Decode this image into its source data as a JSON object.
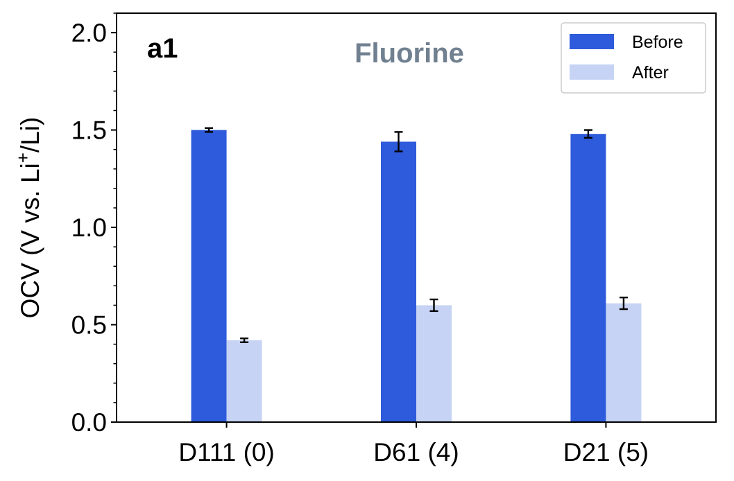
{
  "chart_data": {
    "type": "bar",
    "panel_label": "a1",
    "title": "Fluorine",
    "ylabel_main": "OCV (V vs. Li",
    "ylabel_sup": "+",
    "ylabel_end": "/Li)",
    "xlabel": "",
    "categories": [
      "D111 (0)",
      "D61 (4)",
      "D21 (5)"
    ],
    "ylim": [
      0,
      2.1
    ],
    "y_ticks": [
      0.0,
      0.5,
      1.0,
      1.5,
      2.0
    ],
    "y_tick_labels": [
      "0.0",
      "0.5",
      "1.0",
      "1.5",
      "2.0"
    ],
    "y_minor_step": 0.1,
    "grid": false,
    "legend_position": "top-right",
    "series": [
      {
        "name": "Before",
        "color": "#2e5bdc",
        "values": [
          1.5,
          1.44,
          1.48
        ],
        "errors": [
          0.01,
          0.05,
          0.02
        ]
      },
      {
        "name": "After",
        "color": "#c6d3f4",
        "values": [
          0.42,
          0.6,
          0.61
        ],
        "errors": [
          0.01,
          0.03,
          0.03
        ]
      }
    ],
    "colors": {
      "title": "#708090",
      "axis": "#000000"
    }
  }
}
